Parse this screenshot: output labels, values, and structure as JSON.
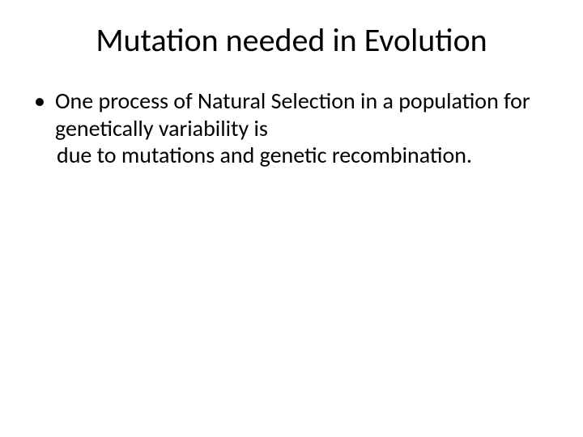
{
  "slide": {
    "title": "Mutation needed in Evolution",
    "bullet1_line1": "One process of Natural Selection in a population for genetically variability is",
    "bullet1_cont": "due to mutations and genetic recombination."
  },
  "style": {
    "background_color": "#ffffff",
    "text_color": "#000000",
    "title_fontsize": 40,
    "body_fontsize": 28,
    "font_family": "Calibri"
  }
}
